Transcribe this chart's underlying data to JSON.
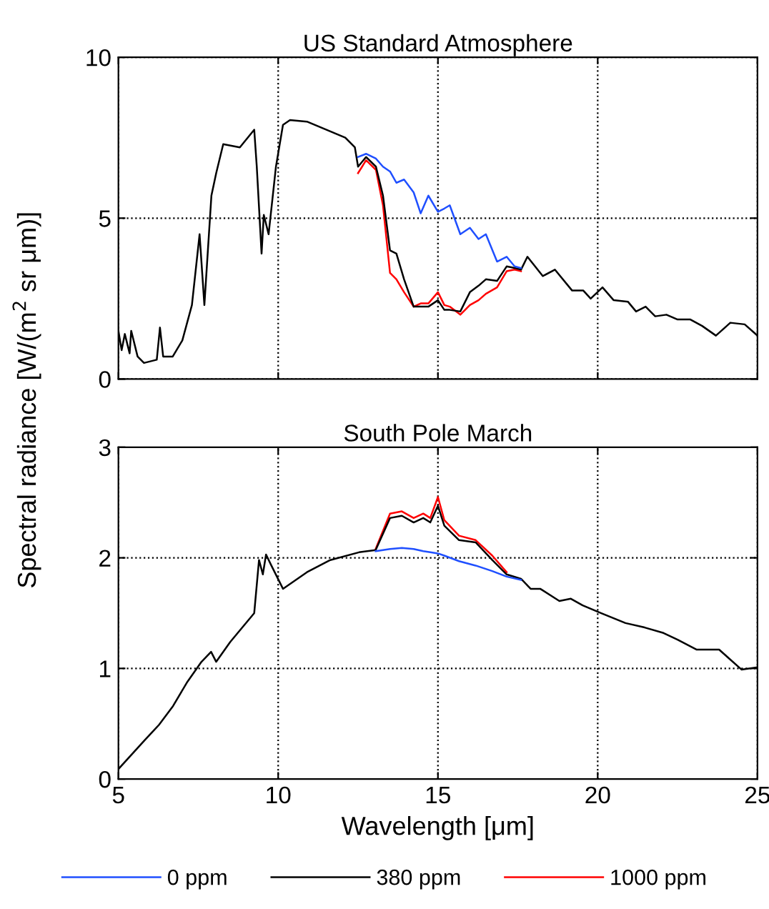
{
  "chart_data": [
    {
      "type": "line",
      "title": "US Standard Atmosphere",
      "ylabel": "Spectral radiance [W/(m$^{2}$ sr μm)]",
      "x": [
        5.0,
        5.1,
        5.2,
        5.35,
        5.4,
        5.6,
        5.8,
        6.0,
        6.2,
        6.3,
        6.4,
        6.7,
        7.0,
        7.3,
        7.54,
        7.69,
        7.91,
        8.06,
        8.28,
        8.8,
        9.25,
        9.33,
        9.48,
        9.55,
        9.7,
        9.93,
        10.15,
        10.37,
        10.9,
        11.5,
        12.1,
        12.4,
        12.5,
        12.75,
        13.06,
        13.28,
        13.5,
        13.7,
        13.94,
        14.24,
        14.46,
        14.7,
        15.0,
        15.2,
        15.37,
        15.7,
        16.0,
        16.27,
        16.5,
        16.85,
        17.15,
        17.4,
        17.6,
        17.8,
        18.28,
        18.66,
        19.2,
        19.55,
        19.78,
        20.15,
        20.5,
        20.95,
        21.2,
        21.5,
        21.8,
        22.15,
        22.5,
        22.9,
        23.27,
        23.7,
        24.15,
        24.6,
        25.0
      ],
      "series": [
        {
          "color": "#1f4fff",
          "values": [
            null,
            null,
            null,
            null,
            null,
            null,
            null,
            null,
            null,
            null,
            null,
            null,
            null,
            null,
            null,
            null,
            null,
            null,
            null,
            null,
            null,
            null,
            null,
            null,
            null,
            null,
            null,
            null,
            null,
            null,
            null,
            null,
            6.9,
            7.0,
            6.85,
            6.6,
            6.45,
            6.1,
            6.2,
            5.8,
            5.15,
            5.7,
            5.2,
            5.3,
            5.4,
            4.5,
            4.7,
            4.35,
            4.5,
            3.65,
            3.8,
            3.5,
            3.45,
            null,
            null,
            null,
            null,
            null,
            null,
            null,
            null,
            null,
            null,
            null,
            null,
            null,
            null,
            null,
            null,
            null,
            null,
            null,
            null
          ]
        },
        {
          "color": "#000000",
          "values": [
            1.5,
            0.9,
            1.4,
            0.8,
            1.5,
            0.7,
            0.5,
            0.55,
            0.6,
            1.6,
            0.7,
            0.7,
            1.2,
            2.3,
            4.5,
            2.3,
            5.7,
            6.4,
            7.3,
            7.2,
            7.75,
            6.6,
            3.9,
            5.1,
            4.5,
            6.6,
            7.9,
            8.05,
            8.0,
            7.75,
            7.5,
            7.2,
            6.6,
            6.9,
            6.6,
            5.7,
            4.0,
            3.9,
            3.1,
            2.25,
            2.25,
            2.25,
            2.45,
            2.15,
            2.15,
            2.1,
            2.7,
            2.9,
            3.1,
            3.05,
            3.5,
            3.45,
            3.4,
            3.8,
            3.2,
            3.4,
            2.75,
            2.75,
            2.5,
            2.85,
            2.45,
            2.4,
            2.1,
            2.25,
            1.95,
            2.0,
            1.85,
            1.85,
            1.65,
            1.35,
            1.75,
            1.7,
            1.35
          ]
        },
        {
          "color": "#ff0000",
          "values": [
            null,
            null,
            null,
            null,
            null,
            null,
            null,
            null,
            null,
            null,
            null,
            null,
            null,
            null,
            null,
            null,
            null,
            null,
            null,
            null,
            null,
            null,
            null,
            null,
            null,
            null,
            null,
            null,
            null,
            null,
            null,
            null,
            6.4,
            6.8,
            6.5,
            5.4,
            3.3,
            3.1,
            2.7,
            2.25,
            2.35,
            2.35,
            2.7,
            2.3,
            2.25,
            2.0,
            2.3,
            2.45,
            2.65,
            2.85,
            3.35,
            3.4,
            3.35,
            null,
            null,
            null,
            null,
            null,
            null,
            null,
            null,
            null,
            null,
            null,
            null,
            null,
            null,
            null,
            null,
            null,
            null,
            null,
            null
          ]
        }
      ],
      "xlim": [
        5,
        25
      ],
      "xticks": [
        5,
        10,
        15,
        20,
        25
      ],
      "ylim": [
        0,
        10
      ],
      "yticks": [
        0,
        5,
        10
      ],
      "tick_labels": "y",
      "grid": true,
      "line_style": "solid",
      "legend": false
    },
    {
      "type": "line",
      "title": "South Pole March",
      "xlabel": "Wavelength [μm]",
      "x": [
        5.0,
        5.82,
        6.27,
        6.71,
        7.16,
        7.6,
        7.9,
        8.06,
        8.5,
        9.25,
        9.4,
        9.52,
        9.62,
        9.77,
        10.15,
        10.9,
        11.63,
        12.53,
        13.05,
        13.5,
        13.87,
        14.24,
        14.54,
        14.76,
        15.0,
        15.2,
        15.66,
        16.18,
        16.7,
        17.15,
        17.6,
        17.9,
        18.2,
        18.8,
        19.16,
        19.53,
        20.1,
        20.87,
        21.47,
        22.06,
        22.5,
        23.1,
        23.8,
        24.5,
        25.0
      ],
      "series": [
        {
          "name": "0 ppm",
          "color": "#1f4fff",
          "values": [
            null,
            null,
            null,
            null,
            null,
            null,
            null,
            null,
            null,
            null,
            null,
            null,
            null,
            null,
            null,
            null,
            null,
            null,
            2.06,
            2.08,
            2.09,
            2.08,
            2.06,
            2.05,
            2.04,
            2.02,
            1.97,
            1.93,
            1.88,
            1.83,
            1.8,
            null,
            null,
            null,
            null,
            null,
            null,
            null,
            null,
            null,
            null,
            null,
            null,
            null,
            null
          ]
        },
        {
          "name": "380 ppm",
          "color": "#000000",
          "values": [
            0.09,
            0.35,
            0.49,
            0.66,
            0.88,
            1.06,
            1.15,
            1.06,
            1.24,
            1.5,
            1.98,
            1.85,
            2.03,
            1.94,
            1.72,
            1.87,
            1.98,
            2.05,
            2.07,
            2.36,
            2.38,
            2.32,
            2.36,
            2.32,
            2.47,
            2.29,
            2.16,
            2.14,
            1.98,
            1.85,
            1.81,
            1.72,
            1.72,
            1.61,
            1.63,
            1.57,
            1.5,
            1.41,
            1.37,
            1.32,
            1.26,
            1.17,
            1.17,
            0.99,
            1.01
          ]
        },
        {
          "name": "1000 ppm",
          "color": "#ff0000",
          "values": [
            null,
            null,
            null,
            null,
            null,
            null,
            null,
            null,
            null,
            null,
            null,
            null,
            null,
            null,
            null,
            null,
            null,
            null,
            2.08,
            2.4,
            2.42,
            2.36,
            2.4,
            2.36,
            2.55,
            2.34,
            2.2,
            2.16,
            2.02,
            1.87,
            null,
            null,
            null,
            null,
            null,
            null,
            null,
            null,
            null,
            null,
            null,
            null,
            null,
            null,
            null
          ]
        }
      ],
      "xlim": [
        5,
        25
      ],
      "xticks": [
        5,
        10,
        15,
        20,
        25
      ],
      "ylim": [
        0,
        3
      ],
      "yticks": [
        0,
        1,
        2,
        3
      ],
      "grid": true,
      "line_style": "solid",
      "legend": "bottom"
    }
  ]
}
